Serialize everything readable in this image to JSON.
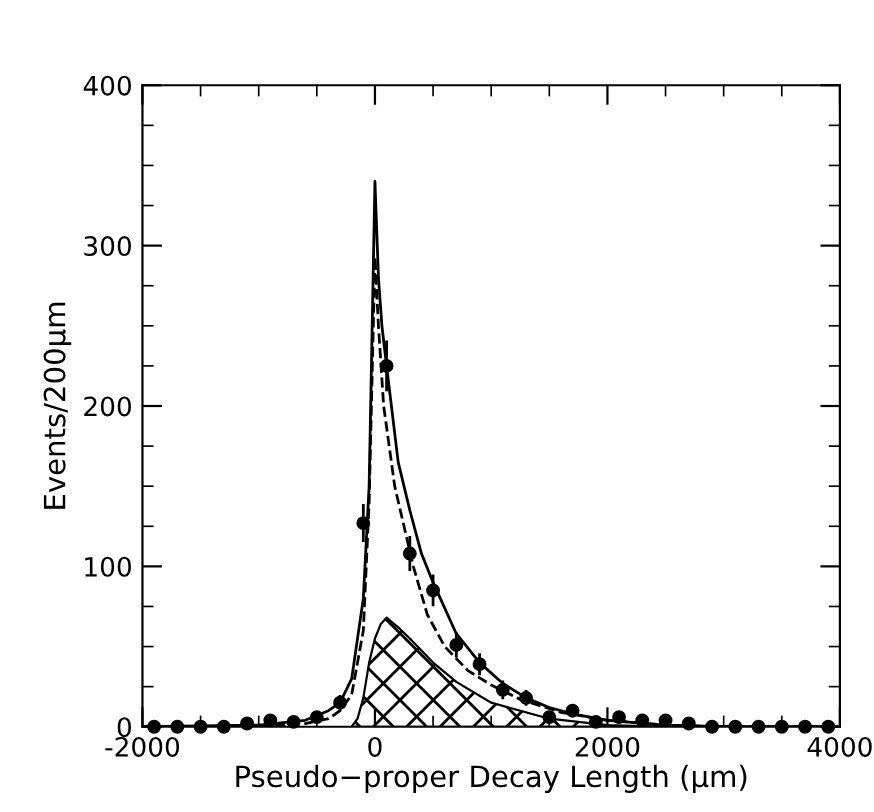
{
  "chart_data": {
    "type": "scatter",
    "xlabel": "Pseudo−proper Decay Length (μm)",
    "ylabel": "Events/200μm",
    "xlim": [
      -2000,
      4000
    ],
    "ylim": [
      0,
      400
    ],
    "xticks": [
      -2000,
      0,
      2000,
      4000
    ],
    "yticks": [
      0,
      100,
      200,
      300,
      400
    ],
    "grid": false,
    "legend": false,
    "series": [
      {
        "type": "area",
        "color": "#000000",
        "x": [
          -200,
          -150,
          -100,
          -50,
          0,
          50,
          100,
          200,
          300,
          500,
          700,
          1000,
          1500,
          2000,
          2500,
          4000
        ],
        "values": [
          0,
          5,
          18,
          40,
          55,
          64,
          68,
          62,
          55,
          40,
          28,
          15,
          5,
          1,
          0,
          0
        ]
      },
      {
        "type": "line",
        "line_style": "dashed",
        "color": "#000000",
        "x": [
          -2000,
          -1000,
          -600,
          -400,
          -300,
          -200,
          -100,
          -50,
          0,
          30,
          75,
          170,
          330,
          450,
          600,
          800,
          1000,
          1250,
          1600,
          2000,
          2500,
          3000,
          4000
        ],
        "values": [
          0,
          0,
          2,
          5,
          10,
          20,
          60,
          140,
          293,
          250,
          200,
          150,
          100,
          70,
          50,
          35,
          26,
          17,
          9,
          4,
          1,
          0,
          0
        ]
      },
      {
        "type": "line",
        "line_style": "solid",
        "color": "#000000",
        "x": [
          -2000,
          -1000,
          -600,
          -400,
          -300,
          -200,
          -100,
          -50,
          0,
          30,
          60,
          100,
          200,
          300,
          400,
          500,
          700,
          900,
          1100,
          1300,
          1500,
          1700,
          2000,
          2500,
          3000,
          4000
        ],
        "values": [
          0,
          1,
          4,
          10,
          15,
          30,
          80,
          150,
          340,
          280,
          250,
          225,
          165,
          135,
          108,
          90,
          58,
          40,
          27,
          18,
          12,
          8,
          4,
          1,
          0,
          0
        ]
      },
      {
        "marker": "circle",
        "color": "#000000",
        "x": [
          -1900,
          -1700,
          -1500,
          -1300,
          -1100,
          -900,
          -700,
          -500,
          -300,
          -100,
          100,
          300,
          500,
          700,
          900,
          1100,
          1300,
          1500,
          1700,
          1900,
          2100,
          2300,
          2500,
          2700,
          2900,
          3100,
          3300,
          3500,
          3700,
          3900
        ],
        "values": [
          0,
          0,
          0,
          0,
          2,
          4,
          3,
          6,
          15,
          127,
          225,
          108,
          85,
          51,
          39,
          23,
          18,
          6,
          10,
          3,
          6,
          4,
          4,
          2,
          0,
          0,
          0,
          0,
          0,
          0
        ],
        "errors": [
          null,
          null,
          null,
          null,
          null,
          null,
          null,
          null,
          4,
          11,
          15,
          10,
          9,
          7,
          6,
          5,
          4,
          null,
          null,
          null,
          null,
          null,
          null,
          null,
          null,
          null,
          null,
          null,
          null,
          null
        ]
      }
    ]
  }
}
